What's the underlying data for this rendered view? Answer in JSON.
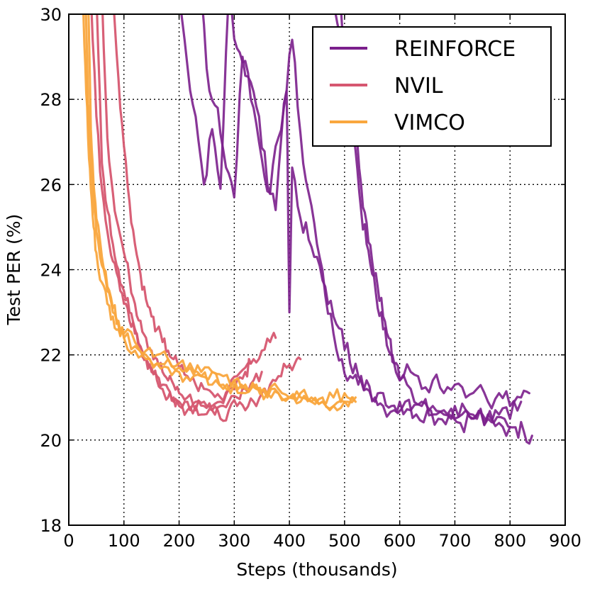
{
  "chart_data": {
    "type": "line",
    "title": "",
    "xlabel": "Steps (thousands)",
    "ylabel": "Test PER (%)",
    "xlim": [
      0,
      900
    ],
    "ylim": [
      18,
      30
    ],
    "xticks": [
      0,
      100,
      200,
      300,
      400,
      500,
      600,
      700,
      800,
      900
    ],
    "yticks": [
      18,
      20,
      22,
      24,
      26,
      28,
      30
    ],
    "xtick_labels": [
      "0",
      "100",
      "200",
      "300",
      "400",
      "500",
      "600",
      "700",
      "800",
      "900"
    ],
    "ytick_labels": [
      "18",
      "20",
      "22",
      "24",
      "26",
      "28",
      "30"
    ],
    "grid": true,
    "legend_position": "top-right",
    "series": [
      {
        "name": "REINFORCE",
        "color": "#7B1F8C",
        "runs": [
          {
            "x": [
              200,
              215,
              230,
              245,
              260,
              275,
              290,
              305,
              320,
              335,
              350,
              365,
              380,
              395,
              400,
              405,
              420,
              435,
              450,
              465,
              480,
              495,
              510,
              525,
              540,
              555,
              570,
              585,
              600,
              620,
              640,
              660,
              680,
              700,
              720,
              740,
              760,
              780,
              800,
              820,
              835
            ],
            "y": [
              30.5,
              28.8,
              27.6,
              26.0,
              27.3,
              25.9,
              30.5,
              29.2,
              28.9,
              27.8,
              26.6,
              25.8,
              27.1,
              28.2,
              23.0,
              26.4,
              25.2,
              24.7,
              24.3,
              23.6,
              22.9,
              22.6,
              21.8,
              21.5,
              21.2,
              20.9,
              21.1,
              20.8,
              20.9,
              20.7,
              20.8,
              20.6,
              20.7,
              20.5,
              20.7,
              20.6,
              20.5,
              20.6,
              20.5,
              21.0,
              21.1
            ]
          },
          {
            "x": [
              240,
              255,
              270,
              285,
              300,
              315,
              330,
              345,
              360,
              375,
              390,
              405,
              420,
              435,
              450,
              465,
              480,
              495,
              510,
              525,
              540,
              555,
              570,
              590,
              610,
              630,
              650,
              670,
              690,
              710,
              730,
              750,
              770,
              790,
              810,
              825,
              840
            ],
            "y": [
              30.5,
              28.2,
              27.8,
              26.4,
              25.7,
              29.0,
              28.4,
              27.6,
              26.0,
              25.4,
              27.9,
              29.4,
              27.2,
              25.8,
              24.6,
              23.4,
              22.5,
              21.9,
              21.5,
              21.3,
              21.4,
              21.0,
              20.8,
              20.7,
              20.9,
              20.6,
              20.7,
              20.5,
              20.6,
              20.4,
              20.5,
              20.6,
              20.4,
              20.5,
              20.3,
              20.2,
              20.1
            ]
          },
          {
            "x": [
              480,
              490,
              500,
              510,
              520,
              530,
              540,
              550,
              560,
              570,
              580,
              590,
              600,
              620,
              640,
              660,
              680,
              700,
              720,
              740,
              760,
              780,
              800,
              820
            ],
            "y": [
              30.5,
              29.6,
              28.4,
              27.2,
              26.8,
              25.4,
              24.6,
              23.9,
              23.1,
              22.6,
              22.1,
              21.8,
              21.4,
              21.6,
              21.2,
              21.4,
              21.1,
              21.3,
              21.0,
              21.2,
              20.9,
              21.1,
              20.8,
              20.9
            ]
          },
          {
            "x": [
              490,
              500,
              510,
              520,
              530,
              540,
              550,
              560,
              570,
              580,
              590,
              600,
              620,
              640,
              660,
              680,
              700,
              720,
              740,
              760,
              780,
              800
            ],
            "y": [
              30.5,
              29.2,
              28.1,
              27.1,
              26.0,
              25.1,
              24.2,
              23.6,
              22.9,
              22.4,
              21.8,
              21.4,
              21.2,
              20.9,
              20.8,
              20.6,
              20.8,
              20.7,
              20.5,
              20.6,
              20.4,
              20.3
            ]
          }
        ]
      },
      {
        "name": "NVIL",
        "color": "#D65770",
        "runs": [
          {
            "x": [
              40,
              50,
              60,
              70,
              80,
              90,
              100,
              110,
              120,
              130,
              140,
              150,
              160,
              170,
              180,
              190,
              200,
              215,
              230,
              245,
              260,
              275,
              290,
              305,
              320,
              335,
              350,
              365,
              375
            ],
            "y": [
              30.5,
              27.6,
              25.9,
              24.9,
              24.2,
              23.8,
              23.2,
              22.8,
              22.5,
              22.2,
              21.9,
              21.6,
              21.4,
              21.2,
              21.0,
              20.9,
              20.8,
              20.9,
              20.7,
              20.9,
              20.8,
              20.9,
              21.2,
              21.5,
              21.7,
              21.9,
              22.1,
              22.3,
              22.4
            ]
          },
          {
            "x": [
              50,
              60,
              70,
              80,
              90,
              100,
              110,
              120,
              130,
              140,
              150,
              160,
              170,
              180,
              190,
              200,
              215,
              230,
              245,
              260,
              275,
              290,
              305,
              320,
              335,
              350,
              365,
              380,
              395,
              410,
              420
            ],
            "y": [
              30.5,
              26.5,
              25.4,
              24.6,
              24.0,
              23.5,
              23.0,
              22.6,
              22.2,
              21.9,
              21.7,
              21.5,
              21.3,
              21.2,
              21.0,
              20.9,
              20.7,
              20.8,
              20.6,
              20.7,
              20.5,
              20.7,
              20.8,
              20.7,
              20.9,
              21.1,
              21.3,
              21.5,
              21.7,
              21.8,
              21.9
            ]
          },
          {
            "x": [
              60,
              70,
              80,
              90,
              100,
              110,
              120,
              130,
              140,
              150,
              160,
              170,
              180,
              190,
              200,
              215,
              230,
              245,
              260,
              275,
              290,
              305,
              320,
              335,
              350
            ],
            "y": [
              30.5,
              27.1,
              25.8,
              25.0,
              24.4,
              23.8,
              23.2,
              22.8,
              22.4,
              22.1,
              21.9,
              21.6,
              21.4,
              21.3,
              21.1,
              21.0,
              20.9,
              20.8,
              20.7,
              20.8,
              20.9,
              21.0,
              21.2,
              21.4,
              21.6
            ]
          },
          {
            "x": [
              80,
              90,
              100,
              110,
              120,
              130,
              140,
              150,
              160,
              170,
              180,
              190,
              200,
              215,
              230,
              245,
              260,
              275,
              290,
              305,
              320,
              330
            ],
            "y": [
              30.5,
              28.5,
              26.9,
              25.6,
              24.6,
              23.9,
              23.3,
              22.9,
              22.6,
              22.3,
              22.1,
              21.9,
              21.7,
              21.5,
              21.3,
              21.2,
              21.1,
              21.0,
              21.2,
              21.4,
              21.6,
              21.8
            ]
          }
        ]
      },
      {
        "name": "VIMCO",
        "color": "#F9A73E",
        "runs": [
          {
            "x": [
              25,
              30,
              35,
              40,
              45,
              50,
              60,
              70,
              80,
              90,
              100,
              120,
              140,
              160,
              180,
              200,
              220,
              240,
              260,
              280,
              300,
              320,
              340,
              360,
              380,
              400,
              420,
              440,
              460,
              480,
              500,
              515
            ],
            "y": [
              30.5,
              28.8,
              27.1,
              25.9,
              25.0,
              24.4,
              23.7,
              23.2,
              22.9,
              22.6,
              22.4,
              22.1,
              21.9,
              21.8,
              21.7,
              21.6,
              21.4,
              21.5,
              21.3,
              21.2,
              21.3,
              21.1,
              21.2,
              21.0,
              21.1,
              21.0,
              20.9,
              21.0,
              20.9,
              21.0,
              21.1,
              21.0
            ]
          },
          {
            "x": [
              30,
              35,
              40,
              45,
              50,
              60,
              70,
              80,
              90,
              100,
              120,
              140,
              160,
              180,
              200,
              220,
              240,
              260,
              280,
              300,
              320,
              340,
              360,
              380,
              400,
              420,
              440,
              460,
              480,
              500,
              520
            ],
            "y": [
              30.5,
              27.9,
              26.6,
              25.6,
              24.9,
              24.1,
              23.5,
              23.0,
              22.7,
              22.4,
              22.2,
              22.0,
              21.8,
              21.9,
              21.7,
              21.8,
              21.5,
              21.6,
              21.3,
              21.4,
              21.2,
              21.3,
              21.1,
              21.2,
              21.0,
              21.1,
              20.9,
              21.0,
              20.8,
              20.9,
              20.9
            ]
          },
          {
            "x": [
              35,
              40,
              45,
              50,
              60,
              70,
              80,
              90,
              100,
              120,
              140,
              160,
              180,
              200,
              220,
              240,
              260,
              280,
              300,
              320,
              340,
              360,
              380,
              400,
              420,
              440,
              460,
              480,
              500,
              520
            ],
            "y": [
              30.5,
              27.3,
              26.0,
              25.2,
              24.3,
              23.6,
              23.1,
              22.8,
              22.5,
              22.3,
              22.1,
              22.0,
              21.9,
              21.8,
              21.7,
              21.6,
              21.6,
              21.5,
              21.4,
              21.3,
              21.2,
              21.1,
              21.1,
              21.0,
              21.0,
              20.9,
              20.9,
              20.8,
              20.9,
              21.0
            ]
          }
        ]
      }
    ]
  }
}
